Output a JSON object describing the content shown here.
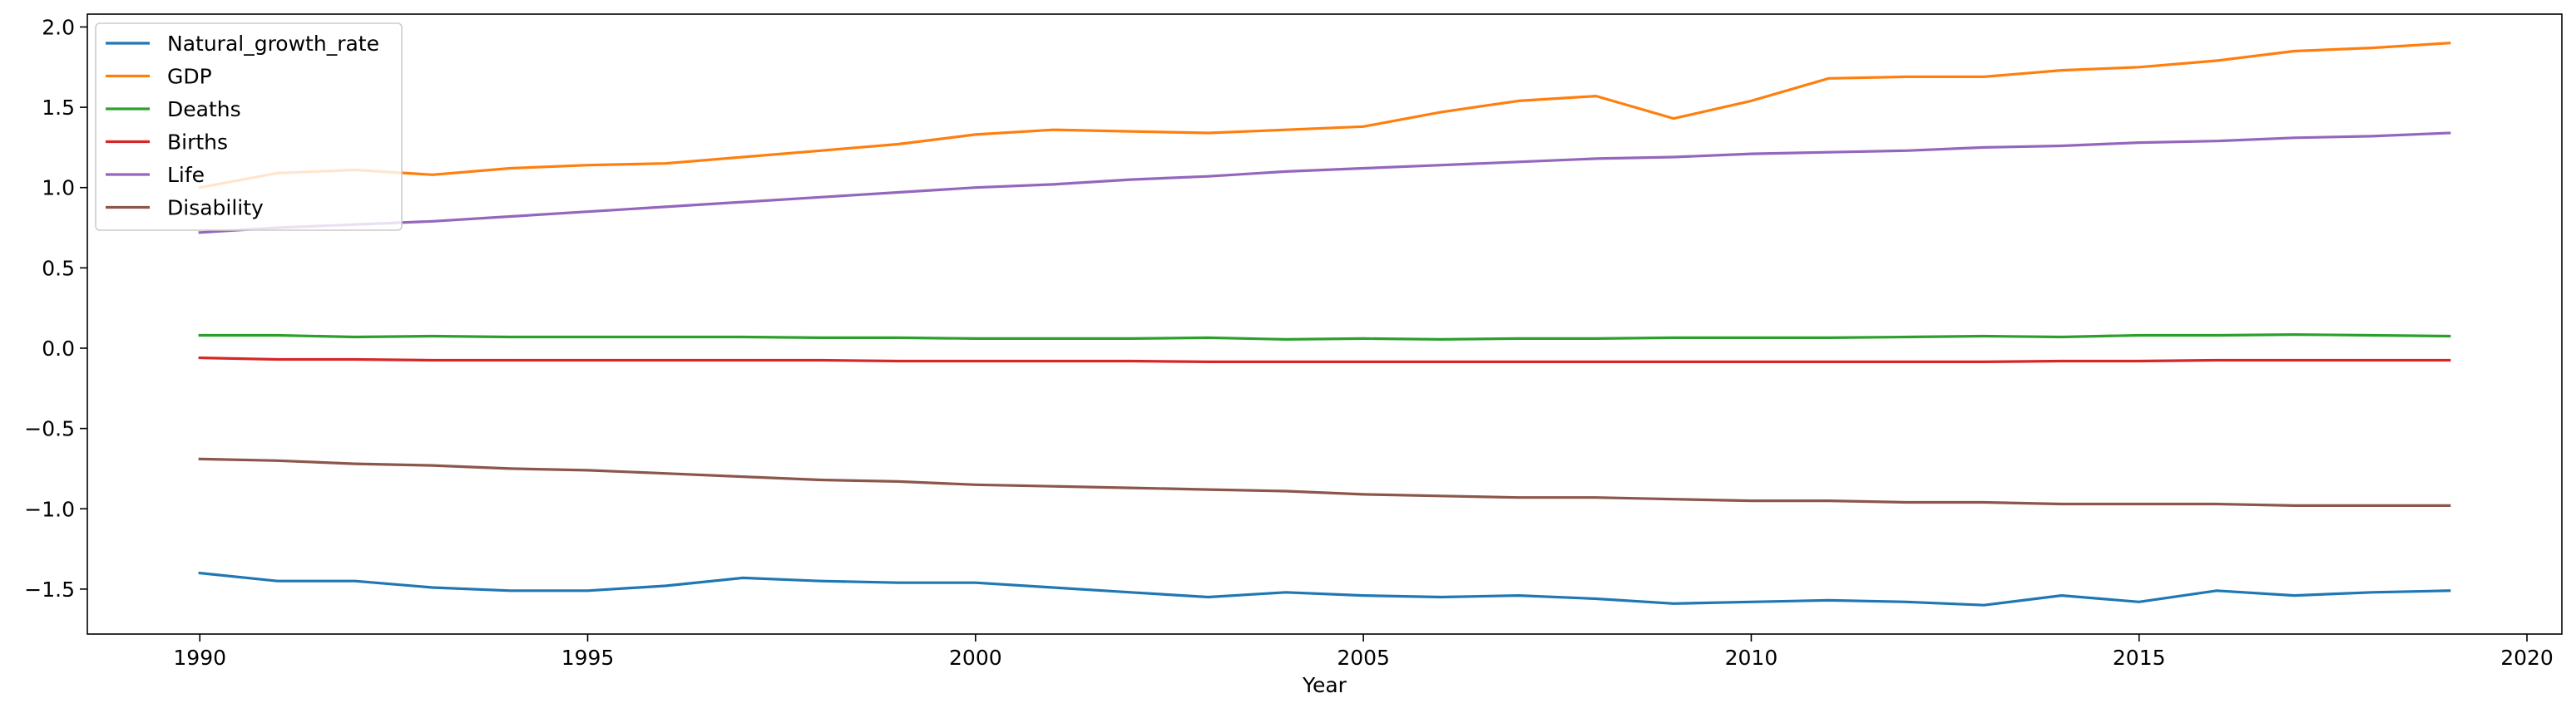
{
  "chart_data": {
    "type": "line",
    "title": "",
    "xlabel": "Year",
    "ylabel": "",
    "xlim": [
      1988.55,
      2020.45
    ],
    "ylim": [
      -1.78,
      2.08
    ],
    "xticks": [
      1990,
      1995,
      2000,
      2005,
      2010,
      2015,
      2020
    ],
    "yticks": [
      -1.5,
      -1.0,
      -0.5,
      0.0,
      0.5,
      1.0,
      1.5,
      2.0
    ],
    "ytick_labels": [
      "−1.5",
      "−1.0",
      "−0.5",
      "0.0",
      "0.5",
      "1.0",
      "1.5",
      "2.0"
    ],
    "grid": false,
    "legend_position": "top-left",
    "x": [
      1990,
      1991,
      1992,
      1993,
      1994,
      1995,
      1996,
      1997,
      1998,
      1999,
      2000,
      2001,
      2002,
      2003,
      2004,
      2005,
      2006,
      2007,
      2008,
      2009,
      2010,
      2011,
      2012,
      2013,
      2014,
      2015,
      2016,
      2017,
      2018,
      2019
    ],
    "series": [
      {
        "name": "Natural_growth_rate",
        "color": "#1f77b4",
        "values": [
          -1.4,
          -1.45,
          -1.45,
          -1.49,
          -1.51,
          -1.51,
          -1.48,
          -1.43,
          -1.45,
          -1.46,
          -1.46,
          -1.49,
          -1.52,
          -1.55,
          -1.52,
          -1.54,
          -1.55,
          -1.54,
          -1.56,
          -1.59,
          -1.58,
          -1.57,
          -1.58,
          -1.6,
          -1.54,
          -1.58,
          -1.51,
          -1.54,
          -1.52,
          -1.51
        ]
      },
      {
        "name": "GDP",
        "color": "#ff7f0e",
        "values": [
          1.0,
          1.09,
          1.11,
          1.08,
          1.12,
          1.14,
          1.15,
          1.19,
          1.23,
          1.27,
          1.33,
          1.36,
          1.35,
          1.34,
          1.36,
          1.38,
          1.47,
          1.54,
          1.57,
          1.43,
          1.54,
          1.68,
          1.69,
          1.69,
          1.73,
          1.75,
          1.79,
          1.85,
          1.87,
          1.9
        ]
      },
      {
        "name": "Deaths",
        "color": "#2ca02c",
        "values": [
          0.08,
          0.08,
          0.07,
          0.075,
          0.07,
          0.07,
          0.07,
          0.07,
          0.065,
          0.065,
          0.06,
          0.06,
          0.06,
          0.065,
          0.055,
          0.06,
          0.055,
          0.06,
          0.06,
          0.065,
          0.065,
          0.065,
          0.07,
          0.075,
          0.07,
          0.08,
          0.08,
          0.085,
          0.08,
          0.075
        ]
      },
      {
        "name": "Births",
        "color": "#d62728",
        "values": [
          -0.06,
          -0.07,
          -0.07,
          -0.075,
          -0.075,
          -0.075,
          -0.075,
          -0.075,
          -0.075,
          -0.08,
          -0.08,
          -0.08,
          -0.08,
          -0.085,
          -0.085,
          -0.085,
          -0.085,
          -0.085,
          -0.085,
          -0.085,
          -0.085,
          -0.085,
          -0.085,
          -0.085,
          -0.08,
          -0.08,
          -0.075,
          -0.075,
          -0.075,
          -0.075
        ]
      },
      {
        "name": "Life",
        "color": "#9467bd",
        "values": [
          0.72,
          0.75,
          0.77,
          0.79,
          0.82,
          0.85,
          0.88,
          0.91,
          0.94,
          0.97,
          1.0,
          1.02,
          1.05,
          1.07,
          1.1,
          1.12,
          1.14,
          1.16,
          1.18,
          1.19,
          1.21,
          1.22,
          1.23,
          1.25,
          1.26,
          1.28,
          1.29,
          1.31,
          1.32,
          1.34
        ]
      },
      {
        "name": "Disability",
        "color": "#8c564b",
        "values": [
          -0.69,
          -0.7,
          -0.72,
          -0.73,
          -0.75,
          -0.76,
          -0.78,
          -0.8,
          -0.82,
          -0.83,
          -0.85,
          -0.86,
          -0.87,
          -0.88,
          -0.89,
          -0.91,
          -0.92,
          -0.93,
          -0.93,
          -0.94,
          -0.95,
          -0.95,
          -0.96,
          -0.96,
          -0.97,
          -0.97,
          -0.97,
          -0.98,
          -0.98,
          -0.98
        ]
      }
    ]
  }
}
